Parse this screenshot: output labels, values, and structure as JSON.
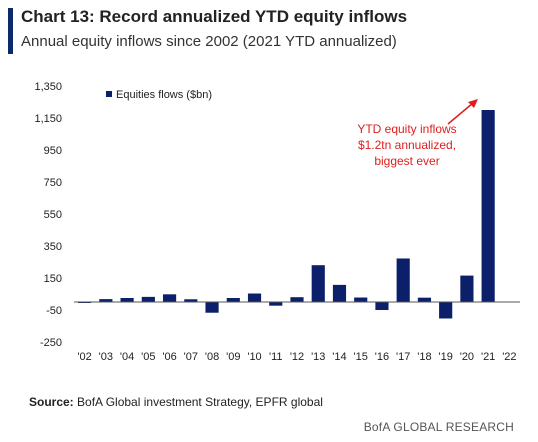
{
  "header": {
    "title": "Chart 13: Record annualized YTD equity inflows",
    "subtitle": "Annual equity inflows since 2002 (2021 YTD annualized)"
  },
  "footer": {
    "source_label": "Source:",
    "source_text": " BofA Global investment Strategy, EPFR global",
    "brand": "BofA GLOBAL RESEARCH"
  },
  "colors": {
    "bar": "#0c1f6b",
    "annotation": "#e01e1e",
    "axis": "#555555"
  },
  "chart_data": {
    "type": "bar",
    "title": "Chart 13: Record annualized YTD equity inflows",
    "subtitle": "Annual equity inflows since 2002 (2021 YTD annualized)",
    "xlabel": "",
    "ylabel": "",
    "ylim": [
      -250,
      1350
    ],
    "yticks": [
      1350,
      1150,
      950,
      750,
      550,
      350,
      150,
      -50,
      -250
    ],
    "ytick_labels": [
      "1,350",
      "1,150",
      "950",
      "750",
      "550",
      "350",
      "150",
      "-50",
      "-250"
    ],
    "categories": [
      "'02",
      "'03",
      "'04",
      "'05",
      "'06",
      "'07",
      "'08",
      "'09",
      "'10",
      "'11",
      "'12",
      "'13",
      "'14",
      "'15",
      "'16",
      "'17",
      "'18",
      "'19",
      "'20",
      "'21",
      "'22"
    ],
    "series": [
      {
        "name": "Equities flows ($bn)",
        "values": [
          -5,
          18,
          25,
          32,
          48,
          17,
          -67,
          25,
          53,
          -23,
          30,
          230,
          107,
          28,
          -50,
          272,
          27,
          -103,
          165,
          1200,
          null
        ]
      }
    ],
    "legend": "top-left",
    "grid": false,
    "annotation": {
      "text": [
        "YTD equity inflows",
        "$1.2tn annualized,",
        "biggest ever"
      ]
    }
  }
}
